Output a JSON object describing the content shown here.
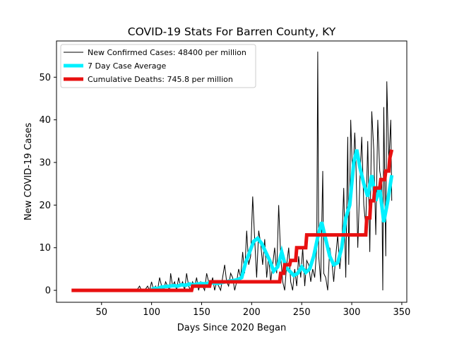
{
  "chart_data": {
    "type": "line",
    "title": "COVID-19 Stats For Barren County, KY",
    "xlabel": "Days Since 2020 Began",
    "ylabel": "New COVID-19 Cases",
    "xlim": [
      5,
      355
    ],
    "ylim": [
      -2.8,
      58.5
    ],
    "xticks": [
      50,
      100,
      150,
      200,
      250,
      300,
      350
    ],
    "yticks": [
      0,
      10,
      20,
      30,
      40,
      50
    ],
    "grid": false,
    "legend_position": "top-left",
    "series": [
      {
        "name": "New Confirmed Cases: 48400 per million",
        "color": "#000000",
        "kind": "daily",
        "x": [
          85,
          88,
          90,
          93,
          96,
          98,
          100,
          102,
          104,
          106,
          108,
          110,
          112,
          114,
          116,
          118,
          119,
          121,
          123,
          125,
          127,
          129,
          131,
          133,
          135,
          137,
          139,
          141,
          143,
          145,
          147,
          149,
          151,
          153,
          155,
          157,
          159,
          161,
          163,
          165,
          167,
          169,
          171,
          173,
          175,
          177,
          179,
          181,
          183,
          185,
          187,
          189,
          191,
          193,
          195,
          197,
          199,
          201,
          203,
          205,
          207,
          209,
          211,
          213,
          215,
          217,
          219,
          221,
          223,
          225,
          227,
          229,
          231,
          233,
          235,
          237,
          239,
          241,
          243,
          245,
          247,
          249,
          251,
          253,
          255,
          257,
          259,
          261,
          263,
          265,
          266,
          267,
          269,
          271,
          272,
          274,
          276,
          278,
          280,
          282,
          284,
          286,
          288,
          290,
          292,
          294,
          296,
          297,
          299,
          301,
          303,
          304,
          306,
          308,
          310,
          312,
          314,
          316,
          318,
          320,
          322,
          324,
          326,
          328,
          330,
          331,
          332,
          334,
          335,
          337,
          339,
          340
        ],
        "y": [
          0,
          1,
          0,
          0,
          1,
          0,
          2,
          0,
          1,
          0,
          3,
          1,
          0,
          2,
          1,
          0,
          4,
          1,
          2,
          0,
          3,
          1,
          2,
          0,
          4,
          1,
          0,
          2,
          1,
          3,
          0,
          2,
          1,
          0,
          4,
          2,
          1,
          3,
          0,
          2,
          1,
          0,
          3,
          6,
          2,
          1,
          4,
          3,
          0,
          2,
          5,
          3,
          9,
          4,
          14,
          6,
          8,
          22,
          12,
          3,
          14,
          11,
          6,
          12,
          3,
          8,
          2,
          6,
          10,
          4,
          20,
          8,
          2,
          0,
          6,
          10,
          2,
          0,
          5,
          1,
          8,
          3,
          10,
          1,
          7,
          6,
          2,
          5,
          3,
          10,
          56,
          8,
          2,
          28,
          4,
          3,
          0,
          10,
          7,
          2,
          8,
          13,
          5,
          10,
          24,
          3,
          36,
          6,
          40,
          25,
          37,
          32,
          10,
          25,
          36,
          20,
          15,
          35,
          9,
          42,
          33,
          13,
          40,
          28,
          25,
          0,
          43,
          8,
          49,
          30,
          40,
          21
        ]
      },
      {
        "name": "7 Day Case Average",
        "color": "#00f0ff",
        "kind": "average",
        "x": [
          100,
          103,
          106,
          110,
          114,
          118,
          122,
          126,
          130,
          134,
          138,
          142,
          146,
          150,
          154,
          158,
          162,
          166,
          170,
          174,
          178,
          182,
          186,
          190,
          194,
          198,
          202,
          206,
          210,
          214,
          218,
          222,
          226,
          230,
          234,
          238,
          242,
          246,
          250,
          254,
          258,
          262,
          266,
          270,
          274,
          278,
          282,
          286,
          290,
          294,
          298,
          302,
          305,
          308,
          312,
          316,
          320,
          324,
          328,
          332,
          336,
          340
        ],
        "y": [
          0.2,
          0.5,
          0.4,
          0.8,
          0.9,
          1.0,
          1.1,
          1.0,
          1.3,
          1.2,
          1.5,
          1.3,
          1.5,
          1.6,
          1.5,
          1.8,
          1.7,
          1.6,
          1.8,
          2.0,
          2.2,
          2.3,
          2.5,
          3.0,
          6.5,
          9.0,
          11.5,
          12.2,
          11.0,
          9.0,
          7.0,
          4.5,
          5.5,
          9.0,
          5.5,
          4.5,
          3.5,
          4.0,
          5.5,
          4.2,
          5.0,
          8.0,
          12.5,
          16.0,
          12.0,
          8.0,
          6.0,
          6.5,
          10.0,
          17.0,
          20.0,
          30.0,
          33.0,
          29.0,
          25.0,
          22.0,
          27.0,
          21.0,
          24.0,
          16.0,
          21.0,
          27.0
        ]
      },
      {
        "name": "Cumulative Deaths: 745.8 per million",
        "color": "#e81010",
        "kind": "step",
        "x": [
          20,
          140,
          141,
          158,
          159,
          228,
          229,
          232,
          233,
          238,
          239,
          244,
          245,
          254,
          255,
          314,
          315,
          318,
          319,
          322,
          323,
          328,
          329,
          333,
          334,
          337,
          338,
          340
        ],
        "y": [
          0,
          0,
          1,
          1,
          2,
          2,
          4,
          4,
          6,
          6,
          7,
          7,
          10,
          10,
          13,
          13,
          17,
          17,
          21,
          21,
          24,
          24,
          26,
          26,
          28,
          28,
          31,
          33
        ]
      }
    ]
  }
}
